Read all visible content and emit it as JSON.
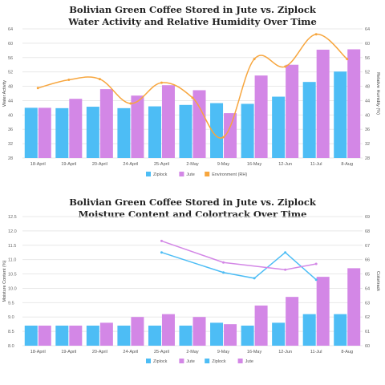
{
  "chart_data": [
    {
      "type": "bar",
      "title_line1": "Bolivian Green Coffee Stored in Jute vs. Ziplock",
      "title_line2": "Water Activity and Relative Humidity Over Time",
      "categories": [
        "18-April",
        "19-April",
        "20-April",
        "24-April",
        "25-April",
        "2-May",
        "9-May",
        "16-May",
        "12-Jun",
        "11-Jul",
        "8-Aug"
      ],
      "ylabel": "Water Activity",
      "y2label": "Relative Humidity (%)",
      "ylim": [
        28,
        64
      ],
      "y2lim": [
        28,
        64
      ],
      "yticks": [
        "28",
        "32",
        "36",
        "40",
        "44",
        "48",
        "52",
        "56",
        "60",
        "64"
      ],
      "y2ticks": [
        "28",
        "32",
        "36",
        "40",
        "44",
        "48",
        "52",
        "56",
        "60",
        "64"
      ],
      "grid": true,
      "legend_position": "bottom",
      "series": [
        {
          "name": "Ziplock",
          "kind": "bar",
          "axis": "left",
          "color": "#4dbdf5",
          "values": [
            42.0,
            41.9,
            42.3,
            41.9,
            42.4,
            42.8,
            43.3,
            43.1,
            45.1,
            49.2,
            52.1
          ]
        },
        {
          "name": "Jute",
          "kind": "bar",
          "axis": "left",
          "color": "#d387e6",
          "values": [
            42.0,
            44.5,
            47.2,
            45.4,
            48.3,
            46.9,
            40.5,
            51.0,
            54.0,
            58.2,
            58.3
          ]
        },
        {
          "name": "Environment (RH)",
          "kind": "line",
          "axis": "right",
          "color": "#f7a63e",
          "values": [
            47.5,
            49.8,
            50.0,
            43.2,
            49.0,
            44.8,
            33.8,
            55.6,
            53.5,
            62.5,
            55.6
          ]
        }
      ]
    },
    {
      "type": "bar",
      "title_line1": "Bolivian Green Coffee Stored in Jute vs. Ziplock",
      "title_line2": "Moisture Content and Colortrack Over Time",
      "categories": [
        "18-April",
        "19-April",
        "20-April",
        "24-April",
        "25-April",
        "2-May",
        "9-May",
        "16-May",
        "12-Jun",
        "11-Jul",
        "8-Aug"
      ],
      "ylabel": "Moisture Content (%)",
      "y2label": "Colortrack",
      "ylim": [
        8.0,
        12.5
      ],
      "y2lim": [
        60,
        69
      ],
      "yticks": [
        "8.0",
        "8.5",
        "9.0",
        "9.5",
        "10.0",
        "10.5",
        "11.0",
        "11.5",
        "12.0",
        "12.5"
      ],
      "y2ticks": [
        "60",
        "61",
        "62",
        "63",
        "64",
        "65",
        "66",
        "67",
        "68",
        "69"
      ],
      "grid": true,
      "legend_position": "bottom",
      "series": [
        {
          "name": "Ziplock",
          "kind": "bar",
          "axis": "left",
          "color": "#4dbdf5",
          "values": [
            8.7,
            8.7,
            8.7,
            8.7,
            8.7,
            8.7,
            8.8,
            8.7,
            8.8,
            9.1,
            9.1
          ]
        },
        {
          "name": "Jute",
          "kind": "bar",
          "axis": "left",
          "color": "#d387e6",
          "values": [
            8.7,
            8.7,
            8.8,
            9.0,
            9.1,
            9.0,
            8.75,
            9.4,
            9.7,
            10.4,
            10.7
          ]
        },
        {
          "name": "Ziplock",
          "kind": "line",
          "axis": "right",
          "color": "#4dbdf5",
          "values": [
            null,
            null,
            null,
            null,
            66.5,
            null,
            65.1,
            64.7,
            66.5,
            64.6,
            null
          ]
        },
        {
          "name": "Jute",
          "kind": "line",
          "axis": "right",
          "color": "#d387e6",
          "values": [
            null,
            null,
            null,
            null,
            67.3,
            null,
            65.8,
            null,
            65.3,
            65.7,
            null
          ]
        }
      ]
    }
  ]
}
